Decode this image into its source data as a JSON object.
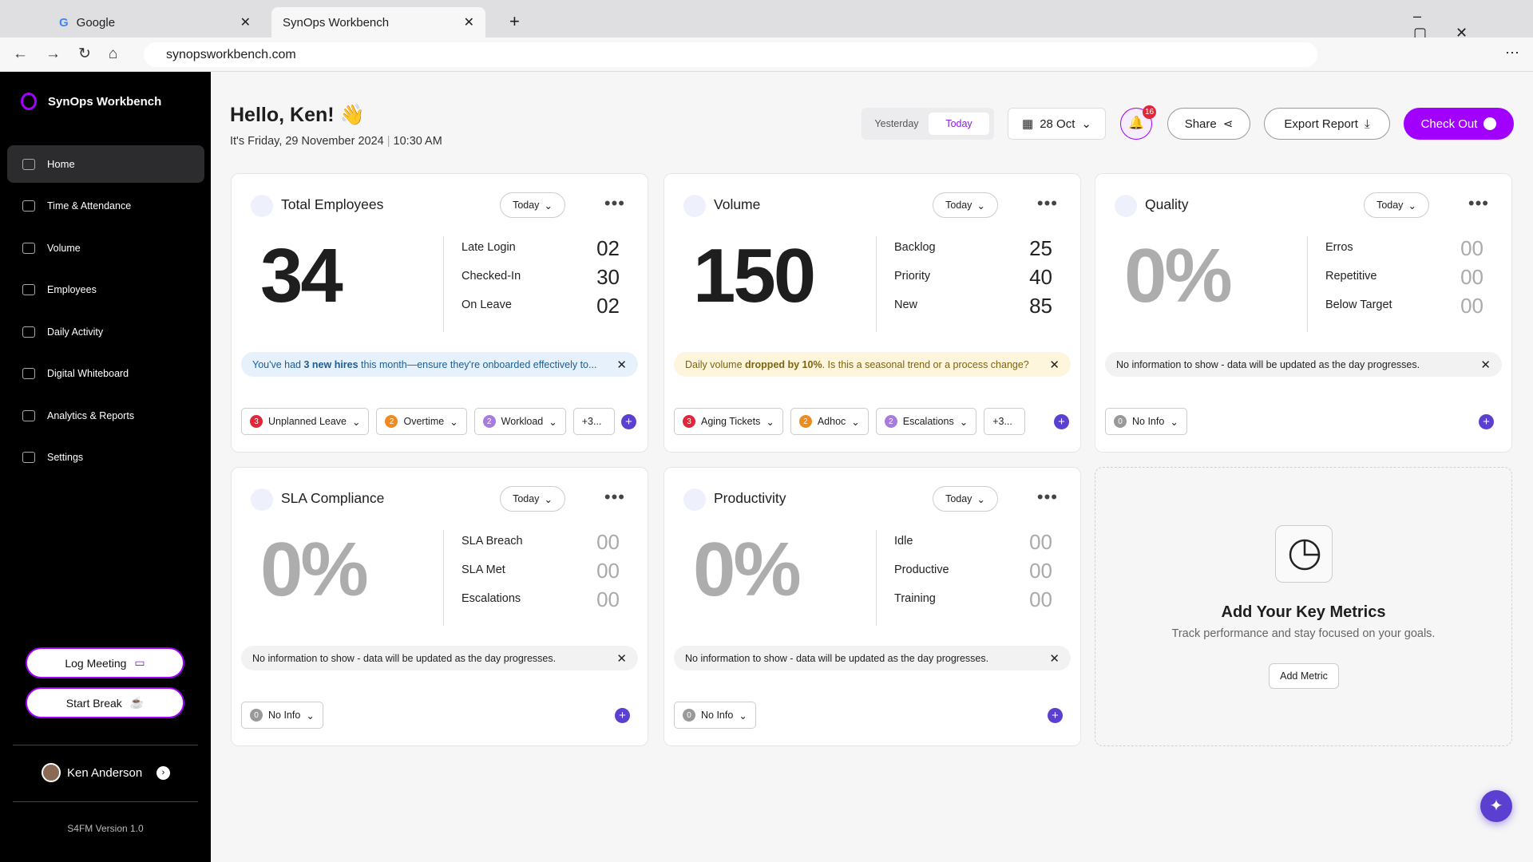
{
  "browser": {
    "tabs": [
      "Google",
      "SynOps Workbench"
    ],
    "url": "synopsworkbench.com"
  },
  "sidebar": {
    "app_name": "SynOps Workbench",
    "nav": [
      "Home",
      "Time & Attendance",
      "Volume",
      "Employees",
      "Daily Activity",
      "Digital Whiteboard",
      "Analytics & Reports",
      "Settings"
    ],
    "actions": [
      "Log Meeting",
      "Start Break"
    ],
    "user": "Ken Anderson",
    "version": "S4FM Version 1.0"
  },
  "header": {
    "greeting": "Hello, Ken! 👋",
    "date": "It's Friday, 29 November 2024",
    "time": "10:30 AM",
    "toggle": [
      "Yesterday",
      "Today"
    ],
    "date_picker": "28 Oct",
    "notifications": 16,
    "buttons": [
      "Share",
      "Export Report",
      "Check Out"
    ]
  },
  "cards": [
    {
      "title": "Total Employees",
      "period": "Today",
      "value": "34",
      "muted": false,
      "stats": [
        {
          "label": "Late Login",
          "value": "02"
        },
        {
          "label": "Checked-In",
          "value": "30"
        },
        {
          "label": "On Leave",
          "value": "02"
        }
      ],
      "alert": {
        "tone": "info",
        "parts": [
          "You've had ",
          "3 new hires",
          " this month—ensure they're onboarded effectively to..."
        ]
      },
      "chips": [
        {
          "count": 3,
          "label": "Unplanned Leave"
        },
        {
          "count": 2,
          "label": "Overtime"
        },
        {
          "count": 2,
          "label": "Workload"
        }
      ],
      "more": "+3..."
    },
    {
      "title": "Volume",
      "period": "Today",
      "value": "150",
      "muted": false,
      "stats": [
        {
          "label": "Backlog",
          "value": "25"
        },
        {
          "label": "Priority",
          "value": "40"
        },
        {
          "label": "New",
          "value": "85"
        }
      ],
      "alert": {
        "tone": "warning",
        "parts": [
          "Daily volume ",
          "dropped by 10%",
          ". Is this a seasonal trend or a process change?"
        ]
      },
      "chips": [
        {
          "count": 3,
          "label": "Aging Tickets"
        },
        {
          "count": 2,
          "label": "Adhoc"
        },
        {
          "count": 2,
          "label": "Escalations"
        }
      ],
      "more": "+3..."
    },
    {
      "title": "Quality",
      "period": "Today",
      "value": "0%",
      "muted": true,
      "stats": [
        {
          "label": "Erros",
          "value": "00"
        },
        {
          "label": "Repetitive",
          "value": "00"
        },
        {
          "label": "Below Target",
          "value": "00"
        }
      ],
      "alert": {
        "tone": "neutral",
        "parts": [
          "No information to show - data will be updated as the day progresses."
        ]
      },
      "chips": [
        {
          "count": 0,
          "label": "No Info"
        }
      ]
    },
    {
      "title": "SLA Compliance",
      "period": "Today",
      "value": "0%",
      "muted": true,
      "stats": [
        {
          "label": "SLA Breach",
          "value": "00"
        },
        {
          "label": "SLA Met",
          "value": "00"
        },
        {
          "label": "Escalations",
          "value": "00"
        }
      ],
      "alert": {
        "tone": "neutral",
        "parts": [
          "No information to show - data will be updated as the day progresses."
        ]
      },
      "chips": [
        {
          "count": 0,
          "label": "No Info"
        }
      ]
    },
    {
      "title": "Productivity",
      "period": "Today",
      "value": "0%",
      "muted": true,
      "stats": [
        {
          "label": "Idle",
          "value": "00"
        },
        {
          "label": "Productive",
          "value": "00"
        },
        {
          "label": "Training",
          "value": "00"
        }
      ],
      "alert": {
        "tone": "neutral",
        "parts": [
          "No information to show - data will be updated as the day progresses."
        ]
      },
      "chips": [
        {
          "count": 0,
          "label": "No Info"
        }
      ]
    }
  ],
  "add_metric": {
    "title": "Add Your Key Metrics",
    "subtitle": "Track performance and stay focused on your goals.",
    "button": "Add Metric"
  }
}
